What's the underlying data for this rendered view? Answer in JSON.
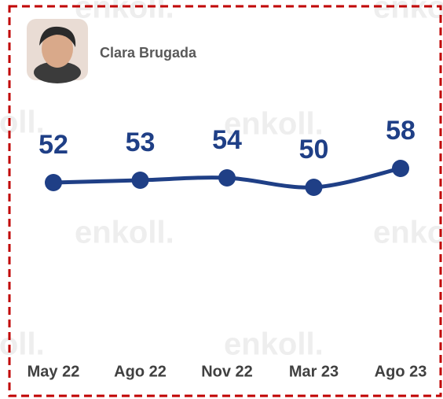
{
  "chart_data": {
    "type": "line",
    "watermark": "enkoll.",
    "categories": [
      "May 22",
      "Ago 22",
      "Nov 22",
      "Mar 23",
      "Ago 23"
    ],
    "series": [
      {
        "name": "Clara Brugada",
        "color": "#1f3f86",
        "values": [
          52,
          53,
          54,
          50,
          58
        ]
      }
    ]
  }
}
